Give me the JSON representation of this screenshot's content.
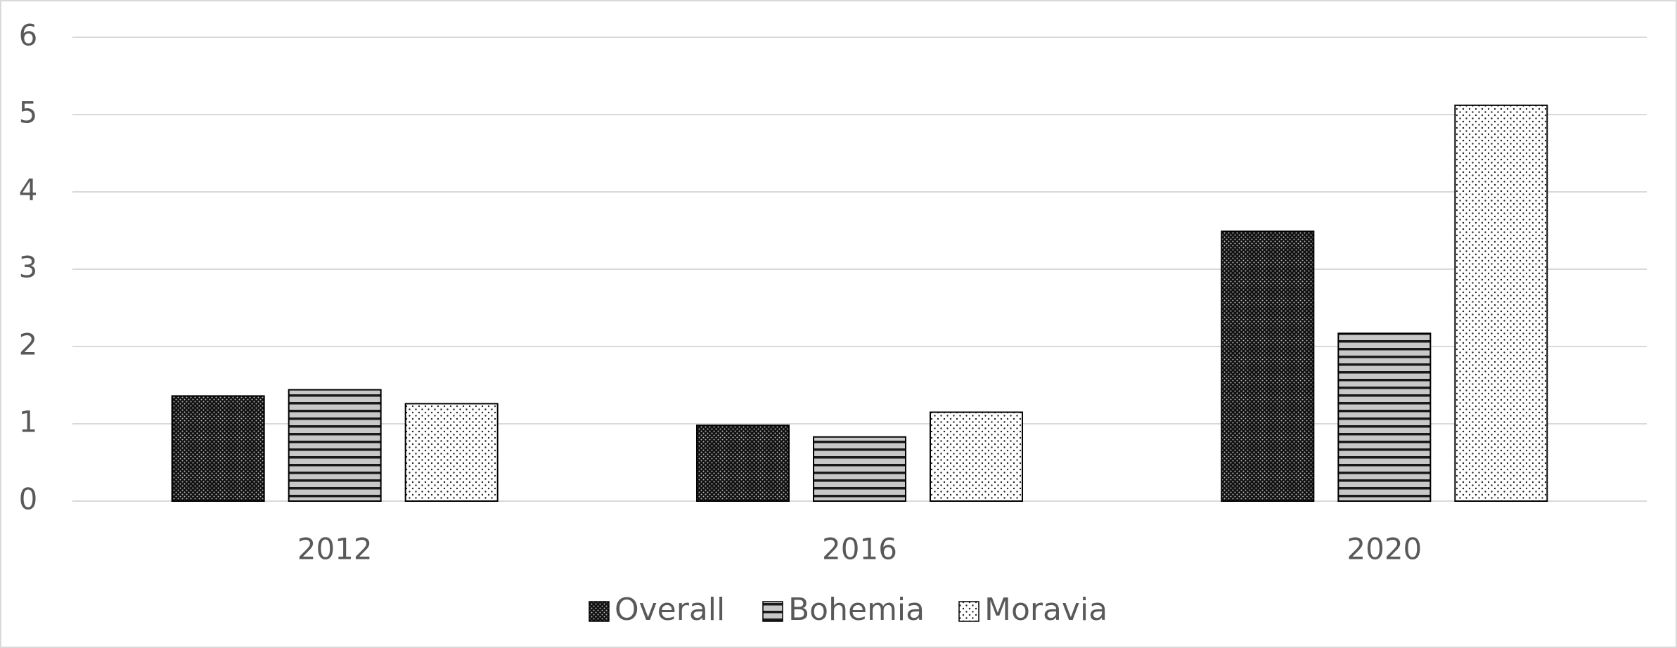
{
  "chart_data": {
    "type": "bar",
    "categories": [
      "2012",
      "2016",
      "2020"
    ],
    "series": [
      {
        "name": "Overall",
        "pattern": "dense-dots",
        "values": [
          1.36,
          0.98,
          3.49
        ]
      },
      {
        "name": "Bohemia",
        "pattern": "horizontal-lines",
        "values": [
          1.44,
          0.83,
          2.17
        ]
      },
      {
        "name": "Moravia",
        "pattern": "sparse-dots",
        "values": [
          1.26,
          1.15,
          5.12
        ]
      }
    ],
    "ylim": [
      0,
      6
    ],
    "yticks": [
      0,
      1,
      2,
      3,
      4,
      5,
      6
    ],
    "grid": true,
    "legend": "bottom"
  }
}
